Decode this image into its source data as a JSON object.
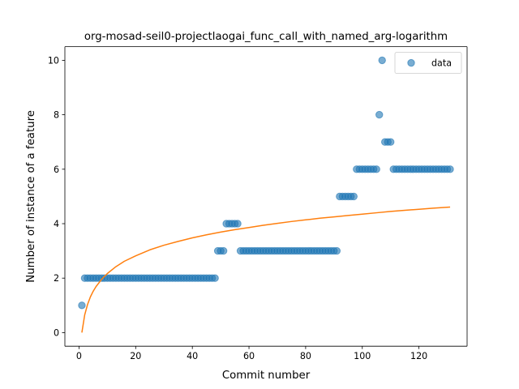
{
  "chart_data": {
    "type": "scatter",
    "title": "org-mosad-seil0-projectlaogai_func_call_with_named_arg-logarithm",
    "xlabel": "Commit number",
    "ylabel": "Number of instance of a feature",
    "xlim": [
      -5,
      137
    ],
    "ylim": [
      -0.5,
      10.5
    ],
    "xticks": [
      0,
      20,
      40,
      60,
      80,
      100,
      120
    ],
    "yticks": [
      0,
      2,
      4,
      6,
      8,
      10
    ],
    "grid": false,
    "legend": {
      "position": "top-right",
      "entries": [
        "data"
      ]
    },
    "colors": {
      "data": "#1f77b4",
      "fit": "#ff7f0e"
    },
    "series": [
      {
        "name": "data",
        "kind": "scatter",
        "points": [
          [
            1,
            1
          ],
          [
            2,
            2
          ],
          [
            3,
            2
          ],
          [
            4,
            2
          ],
          [
            5,
            2
          ],
          [
            6,
            2
          ],
          [
            7,
            2
          ],
          [
            8,
            2
          ],
          [
            9,
            2
          ],
          [
            10,
            2
          ],
          [
            11,
            2
          ],
          [
            12,
            2
          ],
          [
            13,
            2
          ],
          [
            14,
            2
          ],
          [
            15,
            2
          ],
          [
            16,
            2
          ],
          [
            17,
            2
          ],
          [
            18,
            2
          ],
          [
            19,
            2
          ],
          [
            20,
            2
          ],
          [
            21,
            2
          ],
          [
            22,
            2
          ],
          [
            23,
            2
          ],
          [
            24,
            2
          ],
          [
            25,
            2
          ],
          [
            26,
            2
          ],
          [
            27,
            2
          ],
          [
            28,
            2
          ],
          [
            29,
            2
          ],
          [
            30,
            2
          ],
          [
            31,
            2
          ],
          [
            32,
            2
          ],
          [
            33,
            2
          ],
          [
            34,
            2
          ],
          [
            35,
            2
          ],
          [
            36,
            2
          ],
          [
            37,
            2
          ],
          [
            38,
            2
          ],
          [
            39,
            2
          ],
          [
            40,
            2
          ],
          [
            41,
            2
          ],
          [
            42,
            2
          ],
          [
            43,
            2
          ],
          [
            44,
            2
          ],
          [
            45,
            2
          ],
          [
            46,
            2
          ],
          [
            47,
            2
          ],
          [
            48,
            2
          ],
          [
            49,
            3
          ],
          [
            50,
            3
          ],
          [
            51,
            3
          ],
          [
            52,
            4
          ],
          [
            53,
            4
          ],
          [
            54,
            4
          ],
          [
            55,
            4
          ],
          [
            56,
            4
          ],
          [
            57,
            3
          ],
          [
            58,
            3
          ],
          [
            59,
            3
          ],
          [
            60,
            3
          ],
          [
            61,
            3
          ],
          [
            62,
            3
          ],
          [
            63,
            3
          ],
          [
            64,
            3
          ],
          [
            65,
            3
          ],
          [
            66,
            3
          ],
          [
            67,
            3
          ],
          [
            68,
            3
          ],
          [
            69,
            3
          ],
          [
            70,
            3
          ],
          [
            71,
            3
          ],
          [
            72,
            3
          ],
          [
            73,
            3
          ],
          [
            74,
            3
          ],
          [
            75,
            3
          ],
          [
            76,
            3
          ],
          [
            77,
            3
          ],
          [
            78,
            3
          ],
          [
            79,
            3
          ],
          [
            80,
            3
          ],
          [
            81,
            3
          ],
          [
            82,
            3
          ],
          [
            83,
            3
          ],
          [
            84,
            3
          ],
          [
            85,
            3
          ],
          [
            86,
            3
          ],
          [
            87,
            3
          ],
          [
            88,
            3
          ],
          [
            89,
            3
          ],
          [
            90,
            3
          ],
          [
            91,
            3
          ],
          [
            92,
            5
          ],
          [
            93,
            5
          ],
          [
            94,
            5
          ],
          [
            95,
            5
          ],
          [
            96,
            5
          ],
          [
            97,
            5
          ],
          [
            98,
            6
          ],
          [
            99,
            6
          ],
          [
            100,
            6
          ],
          [
            101,
            6
          ],
          [
            102,
            6
          ],
          [
            103,
            6
          ],
          [
            104,
            6
          ],
          [
            105,
            6
          ],
          [
            106,
            8
          ],
          [
            107,
            10
          ],
          [
            108,
            7
          ],
          [
            109,
            7
          ],
          [
            110,
            7
          ],
          [
            111,
            6
          ],
          [
            112,
            6
          ],
          [
            113,
            6
          ],
          [
            114,
            6
          ],
          [
            115,
            6
          ],
          [
            116,
            6
          ],
          [
            117,
            6
          ],
          [
            118,
            6
          ],
          [
            119,
            6
          ],
          [
            120,
            6
          ],
          [
            121,
            6
          ],
          [
            122,
            6
          ],
          [
            123,
            6
          ],
          [
            124,
            6
          ],
          [
            125,
            6
          ],
          [
            126,
            6
          ],
          [
            127,
            6
          ],
          [
            128,
            6
          ],
          [
            129,
            6
          ],
          [
            130,
            6
          ],
          [
            131,
            6
          ]
        ]
      },
      {
        "kind": "line",
        "points": [
          [
            1,
            0
          ],
          [
            2,
            0.65
          ],
          [
            3,
            1.03
          ],
          [
            4,
            1.31
          ],
          [
            5,
            1.52
          ],
          [
            6,
            1.69
          ],
          [
            8,
            1.96
          ],
          [
            10,
            2.17
          ],
          [
            13,
            2.42
          ],
          [
            16,
            2.62
          ],
          [
            20,
            2.82
          ],
          [
            25,
            3.04
          ],
          [
            30,
            3.21
          ],
          [
            35,
            3.35
          ],
          [
            40,
            3.48
          ],
          [
            45,
            3.59
          ],
          [
            50,
            3.69
          ],
          [
            55,
            3.78
          ],
          [
            60,
            3.86
          ],
          [
            65,
            3.94
          ],
          [
            70,
            4.01
          ],
          [
            75,
            4.08
          ],
          [
            80,
            4.14
          ],
          [
            85,
            4.2
          ],
          [
            90,
            4.25
          ],
          [
            95,
            4.3
          ],
          [
            100,
            4.35
          ],
          [
            105,
            4.4
          ],
          [
            110,
            4.45
          ],
          [
            115,
            4.49
          ],
          [
            120,
            4.53
          ],
          [
            125,
            4.57
          ],
          [
            131,
            4.61
          ]
        ]
      }
    ]
  }
}
